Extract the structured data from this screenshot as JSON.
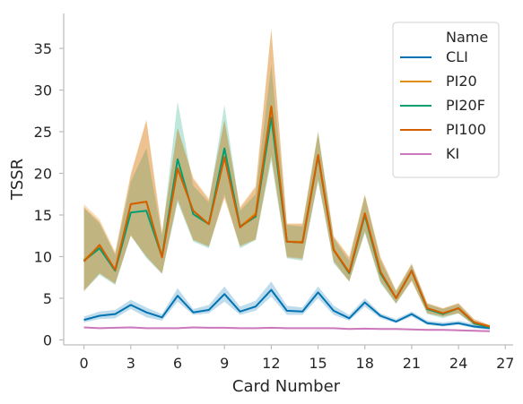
{
  "chart_data": {
    "type": "line",
    "xlabel": "Card Number",
    "ylabel": "TSSR",
    "xlim": [
      -1.3,
      27.5
    ],
    "ylim": [
      -0.6,
      39.2
    ],
    "xticks": [
      0,
      3,
      6,
      9,
      12,
      15,
      18,
      21,
      24,
      27
    ],
    "yticks": [
      0,
      5,
      10,
      15,
      20,
      25,
      30,
      35
    ],
    "grid": false,
    "legend": {
      "title": "Name",
      "position": "top-right"
    },
    "x": [
      0,
      1,
      2,
      3,
      4,
      5,
      6,
      7,
      8,
      9,
      10,
      11,
      12,
      13,
      14,
      15,
      16,
      17,
      18,
      19,
      20,
      21,
      22,
      23,
      24,
      25,
      26
    ],
    "series": [
      {
        "name": "CLI",
        "color": "#0173b2",
        "values": [
          2.4,
          2.9,
          3.1,
          4.2,
          3.3,
          2.7,
          5.3,
          3.3,
          3.6,
          5.5,
          3.4,
          4.0,
          6.0,
          3.5,
          3.4,
          5.7,
          3.5,
          2.6,
          4.5,
          2.9,
          2.2,
          3.1,
          2.0,
          1.8,
          2.0,
          1.6,
          1.4
        ],
        "lower": [
          2.1,
          2.5,
          2.6,
          3.7,
          2.7,
          2.3,
          4.6,
          3.0,
          3.2,
          4.6,
          3.0,
          3.5,
          5.2,
          3.0,
          3.0,
          5.0,
          3.0,
          2.3,
          4.0,
          2.6,
          2.0,
          2.8,
          1.8,
          1.6,
          1.8,
          1.4,
          1.2
        ],
        "upper": [
          2.8,
          3.4,
          3.6,
          4.8,
          3.9,
          3.1,
          6.2,
          3.7,
          4.2,
          6.4,
          4.0,
          4.7,
          7.0,
          4.1,
          3.9,
          6.4,
          4.1,
          3.0,
          5.0,
          3.2,
          2.5,
          3.4,
          2.3,
          2.1,
          2.3,
          1.9,
          1.6
        ]
      },
      {
        "name": "PI20",
        "color": "#de8f05",
        "values": [
          9.6,
          11.3,
          8.4,
          16.3,
          16.6,
          10.0,
          20.5,
          15.5,
          13.9,
          22.0,
          13.6,
          15.2,
          28.1,
          11.8,
          11.8,
          22.1,
          10.9,
          8.1,
          15.2,
          8.2,
          5.0,
          8.3,
          3.8,
          3.2,
          3.8,
          2.1,
          1.6
        ],
        "lower": [
          6.0,
          8.0,
          6.8,
          12.5,
          10.0,
          8.0,
          16.8,
          12.0,
          11.2,
          17.0,
          11.2,
          12.0,
          22.0,
          10.0,
          9.8,
          19.2,
          9.5,
          7.0,
          13.0,
          7.0,
          4.4,
          7.0,
          3.2,
          2.8,
          3.2,
          1.8,
          1.4
        ],
        "upper": [
          16.3,
          14.5,
          10.6,
          20.0,
          26.5,
          13.0,
          25.5,
          19.5,
          17.0,
          26.5,
          16.0,
          18.5,
          37.5,
          14.0,
          14.0,
          25.0,
          12.5,
          10.0,
          17.5,
          10.0,
          6.0,
          9.2,
          4.4,
          3.8,
          4.4,
          2.5,
          1.8
        ]
      },
      {
        "name": "PI20F",
        "color": "#029e73",
        "values": [
          9.5,
          11.0,
          8.3,
          15.3,
          15.5,
          10.0,
          21.7,
          15.1,
          13.9,
          23.0,
          13.6,
          14.8,
          26.7,
          11.8,
          11.7,
          22.1,
          10.8,
          8.0,
          15.0,
          8.0,
          5.0,
          8.3,
          3.7,
          3.1,
          3.8,
          2.0,
          1.5
        ],
        "lower": [
          5.9,
          7.8,
          6.6,
          12.5,
          9.8,
          7.9,
          16.5,
          11.8,
          11.0,
          17.5,
          11.0,
          12.0,
          21.5,
          9.8,
          9.5,
          19.0,
          9.2,
          7.0,
          12.8,
          6.8,
          4.3,
          7.2,
          3.1,
          2.6,
          3.2,
          1.7,
          1.3
        ],
        "upper": [
          15.8,
          14.0,
          10.2,
          19.0,
          23.0,
          12.5,
          28.6,
          18.5,
          16.5,
          28.2,
          15.5,
          17.5,
          33.0,
          13.8,
          13.6,
          25.0,
          12.2,
          9.5,
          17.3,
          9.6,
          5.8,
          9.0,
          4.3,
          3.7,
          4.3,
          2.3,
          1.7
        ]
      },
      {
        "name": "PI100",
        "color": "#d55e00",
        "values": [
          9.4,
          11.4,
          8.4,
          16.3,
          16.6,
          9.9,
          20.6,
          15.5,
          13.9,
          21.9,
          13.5,
          15.0,
          28.0,
          11.8,
          11.7,
          22.2,
          10.8,
          8.1,
          15.2,
          8.2,
          5.0,
          8.3,
          3.8,
          3.2,
          3.8,
          2.1,
          1.6
        ],
        "lower": [
          5.8,
          8.0,
          6.7,
          12.6,
          10.0,
          8.0,
          16.9,
          12.0,
          11.2,
          17.1,
          11.3,
          12.1,
          22.2,
          9.9,
          9.7,
          19.3,
          9.4,
          7.0,
          13.1,
          7.0,
          4.4,
          7.1,
          3.2,
          2.8,
          3.2,
          1.8,
          1.4
        ],
        "upper": [
          16.0,
          14.2,
          10.4,
          19.8,
          26.3,
          12.8,
          25.4,
          19.3,
          16.8,
          26.3,
          15.8,
          18.3,
          37.2,
          13.9,
          13.9,
          24.8,
          12.4,
          9.9,
          17.4,
          9.9,
          5.9,
          9.1,
          4.4,
          3.8,
          4.4,
          2.5,
          1.8
        ]
      },
      {
        "name": "KI",
        "color": "#cc78bc",
        "values": [
          1.5,
          1.4,
          1.45,
          1.5,
          1.4,
          1.4,
          1.4,
          1.5,
          1.45,
          1.45,
          1.4,
          1.4,
          1.45,
          1.4,
          1.4,
          1.4,
          1.4,
          1.3,
          1.35,
          1.3,
          1.3,
          1.25,
          1.2,
          1.2,
          1.15,
          1.1,
          1.05
        ],
        "lower": [
          1.4,
          1.3,
          1.35,
          1.4,
          1.3,
          1.3,
          1.3,
          1.4,
          1.35,
          1.35,
          1.3,
          1.3,
          1.35,
          1.3,
          1.3,
          1.3,
          1.3,
          1.2,
          1.25,
          1.2,
          1.2,
          1.15,
          1.1,
          1.1,
          1.05,
          1.0,
          0.95
        ],
        "upper": [
          1.6,
          1.5,
          1.55,
          1.6,
          1.5,
          1.5,
          1.5,
          1.6,
          1.55,
          1.55,
          1.5,
          1.5,
          1.55,
          1.5,
          1.5,
          1.5,
          1.5,
          1.4,
          1.45,
          1.4,
          1.4,
          1.35,
          1.3,
          1.3,
          1.25,
          1.2,
          1.15
        ]
      }
    ]
  }
}
